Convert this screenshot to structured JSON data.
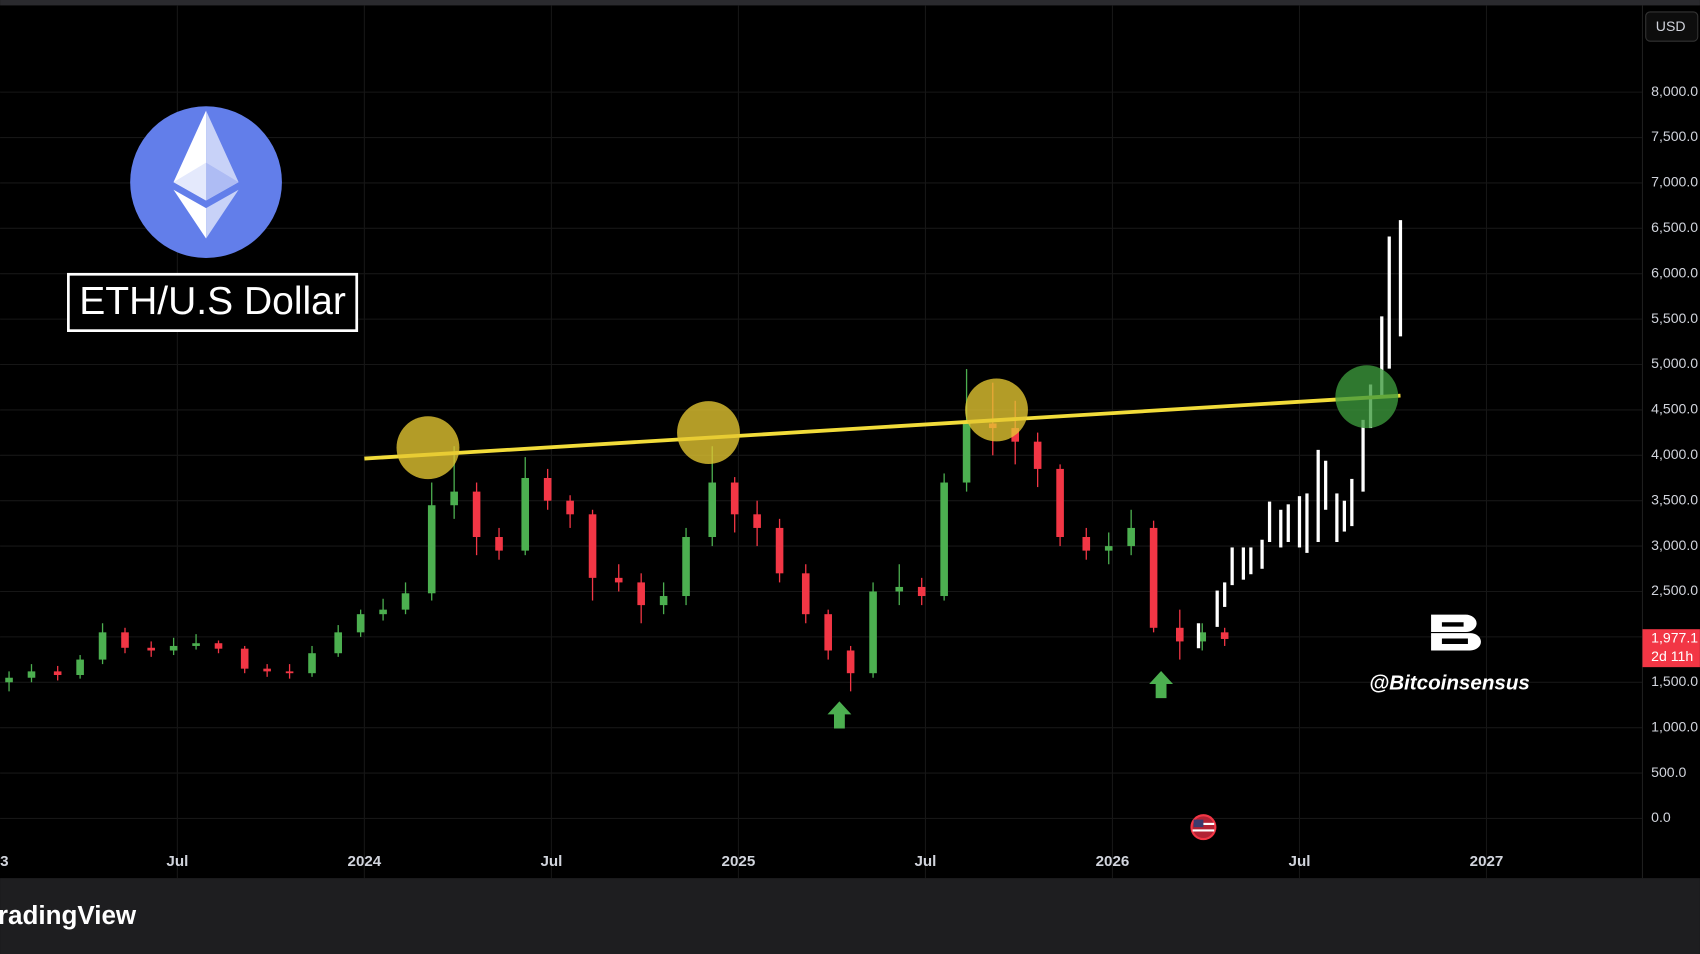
{
  "chart_data": {
    "type": "candlestick",
    "title": "ETH/U.S Dollar",
    "x": [
      2023.05,
      2023.11,
      2023.18,
      2023.24,
      2023.3,
      2023.36,
      2023.43,
      2023.49,
      2023.55,
      2023.61,
      2023.68,
      2023.74,
      2023.8,
      2023.86,
      2023.93,
      2023.99,
      2024.05,
      2024.11,
      2024.18,
      2024.24,
      2024.3,
      2024.36,
      2024.43,
      2024.49,
      2024.55,
      2024.61,
      2024.68,
      2024.74,
      2024.8,
      2024.86,
      2024.93,
      2024.99,
      2025.05,
      2025.11,
      2025.18,
      2025.24,
      2025.3,
      2025.36,
      2025.43,
      2025.49,
      2025.55,
      2025.61,
      2025.68,
      2025.74,
      2025.8,
      2025.86,
      2025.93,
      2025.99,
      2026.05,
      2026.11,
      2026.18,
      2026.24,
      2026.3
    ],
    "open": [
      1500,
      1550,
      1620,
      1580,
      1750,
      2050,
      1880,
      1850,
      1900,
      1930,
      1870,
      1650,
      1620,
      1600,
      1820,
      2050,
      2250,
      2300,
      2480,
      3450,
      3600,
      3100,
      2950,
      3750,
      3500,
      3350,
      2650,
      2600,
      2350,
      2450,
      3100,
      3700,
      3350,
      3200,
      2700,
      2250,
      1850,
      1600,
      2500,
      2550,
      2450,
      3700,
      4350,
      4300,
      4150,
      3850,
      3100,
      2950,
      3000,
      3200,
      2100,
      1950,
      2050
    ],
    "high": [
      1620,
      1700,
      1680,
      1800,
      2150,
      2100,
      1950,
      1990,
      2030,
      1960,
      1900,
      1700,
      1700,
      1900,
      2130,
      2300,
      2420,
      2600,
      3700,
      4100,
      3700,
      3200,
      3980,
      3850,
      3560,
      3400,
      2800,
      2700,
      2600,
      3200,
      4100,
      3760,
      3500,
      3300,
      2800,
      2300,
      1900,
      2600,
      2800,
      2650,
      3800,
      4950,
      4800,
      4600,
      4250,
      3900,
      3200,
      3150,
      3400,
      3280,
      2300,
      2150,
      2100
    ],
    "low": [
      1400,
      1500,
      1520,
      1540,
      1700,
      1820,
      1780,
      1800,
      1860,
      1820,
      1600,
      1560,
      1540,
      1560,
      1780,
      2000,
      2180,
      2250,
      2400,
      3300,
      2900,
      2850,
      2900,
      3400,
      3200,
      2400,
      2500,
      2150,
      2250,
      2350,
      3000,
      3150,
      3000,
      2600,
      2150,
      1750,
      1400,
      1550,
      2350,
      2350,
      2400,
      3600,
      4000,
      3900,
      3650,
      3000,
      2850,
      2800,
      2900,
      2050,
      1750,
      1850,
      1900
    ],
    "close": [
      1550,
      1620,
      1580,
      1750,
      2050,
      1880,
      1850,
      1900,
      1930,
      1870,
      1650,
      1620,
      1600,
      1820,
      2050,
      2250,
      2300,
      2480,
      3450,
      3600,
      3100,
      2950,
      3750,
      3500,
      3350,
      2650,
      2600,
      2350,
      2450,
      3100,
      3700,
      3350,
      3200,
      2700,
      2250,
      1850,
      1600,
      2500,
      2550,
      2450,
      3700,
      4350,
      4300,
      4150,
      3850,
      3100,
      2950,
      3000,
      3200,
      2100,
      1950,
      2050,
      1977.1
    ],
    "up_color": "#4caf50",
    "down_color": "#f23645",
    "projection": {
      "color": "#ffffff",
      "x": [
        2026.23,
        2026.28,
        2026.3,
        2026.32,
        2026.35,
        2026.37,
        2026.4,
        2026.42,
        2026.45,
        2026.47,
        2026.5,
        2026.52,
        2026.55,
        2026.57,
        2026.6,
        2026.62,
        2026.64,
        2026.67,
        2026.69,
        2026.72,
        2026.74,
        2026.77
      ],
      "low": [
        1875,
        2110,
        2330,
        2570,
        2630,
        2690,
        2750,
        3045,
        2985,
        3045,
        2985,
        2925,
        3045,
        3400,
        3045,
        3160,
        3220,
        3600,
        4300,
        4660,
        4955,
        5310
      ],
      "high": [
        2150,
        2510,
        2600,
        2985,
        2985,
        2985,
        3070,
        3490,
        3400,
        3460,
        3550,
        3580,
        4060,
        3940,
        3580,
        3500,
        3740,
        4390,
        4780,
        5530,
        6410,
        6590
      ]
    },
    "trendline": {
      "color": "#f2dc3a",
      "x": [
        2024.0,
        2026.77
      ],
      "y": [
        3964,
        4657
      ]
    },
    "highlights": [
      {
        "x": 2024.17,
        "y": 4084,
        "color": "#e6c832"
      },
      {
        "x": 2024.92,
        "y": 4250,
        "color": "#e6c832"
      },
      {
        "x": 2025.69,
        "y": 4500,
        "color": "#e6c832"
      },
      {
        "x": 2026.68,
        "y": 4645,
        "color": "#3c9a3c"
      }
    ],
    "signals": {
      "color": "#4caf50",
      "x": [
        2025.27,
        2026.13
      ],
      "y": [
        1134,
        1469
      ]
    },
    "last_price": {
      "value": 1977.1,
      "label": "1,977.1",
      "countdown": "2d 11h"
    },
    "xlim": [
      2023.026,
      2027.417
    ],
    "ylim": [
      -657,
      8955
    ],
    "xticks": [
      {
        "value": 2023.0,
        "label": "3"
      },
      {
        "value": 2023.5,
        "label": "Jul"
      },
      2024,
      {
        "value": 2024.5,
        "label": "Jul"
      },
      2025,
      {
        "value": 2025.5,
        "label": "Jul"
      },
      2026,
      {
        "value": 2026.5,
        "label": "Jul"
      },
      2027
    ],
    "yticks": [
      {
        "value": 0,
        "label": "0.0"
      },
      {
        "value": 500,
        "label": "500.0"
      },
      {
        "value": 1000,
        "label": "1,000.0"
      },
      {
        "value": 1500,
        "label": "1,500.0"
      },
      {
        "value": 2000,
        "label": "2,000.0"
      },
      {
        "value": 2500,
        "label": "2,500.0"
      },
      {
        "value": 3000,
        "label": "3,000.0"
      },
      {
        "value": 3500,
        "label": "3,500.0"
      },
      {
        "value": 4000,
        "label": "4,000.0"
      },
      {
        "value": 4500,
        "label": "4,500.0"
      },
      {
        "value": 5000,
        "label": "5,000.0"
      },
      {
        "value": 5500,
        "label": "5,500.0"
      },
      {
        "value": 6000,
        "label": "6,000.0"
      },
      {
        "value": 6500,
        "label": "6,500.0"
      },
      {
        "value": 7000,
        "label": "7,000.0"
      },
      {
        "value": 7500,
        "label": "7,500.0"
      },
      {
        "value": 8000,
        "label": "8,000.0"
      }
    ],
    "grid": true
  },
  "currency": "USD",
  "watermark": "@Bitcoinsensus",
  "brand": "radingView"
}
